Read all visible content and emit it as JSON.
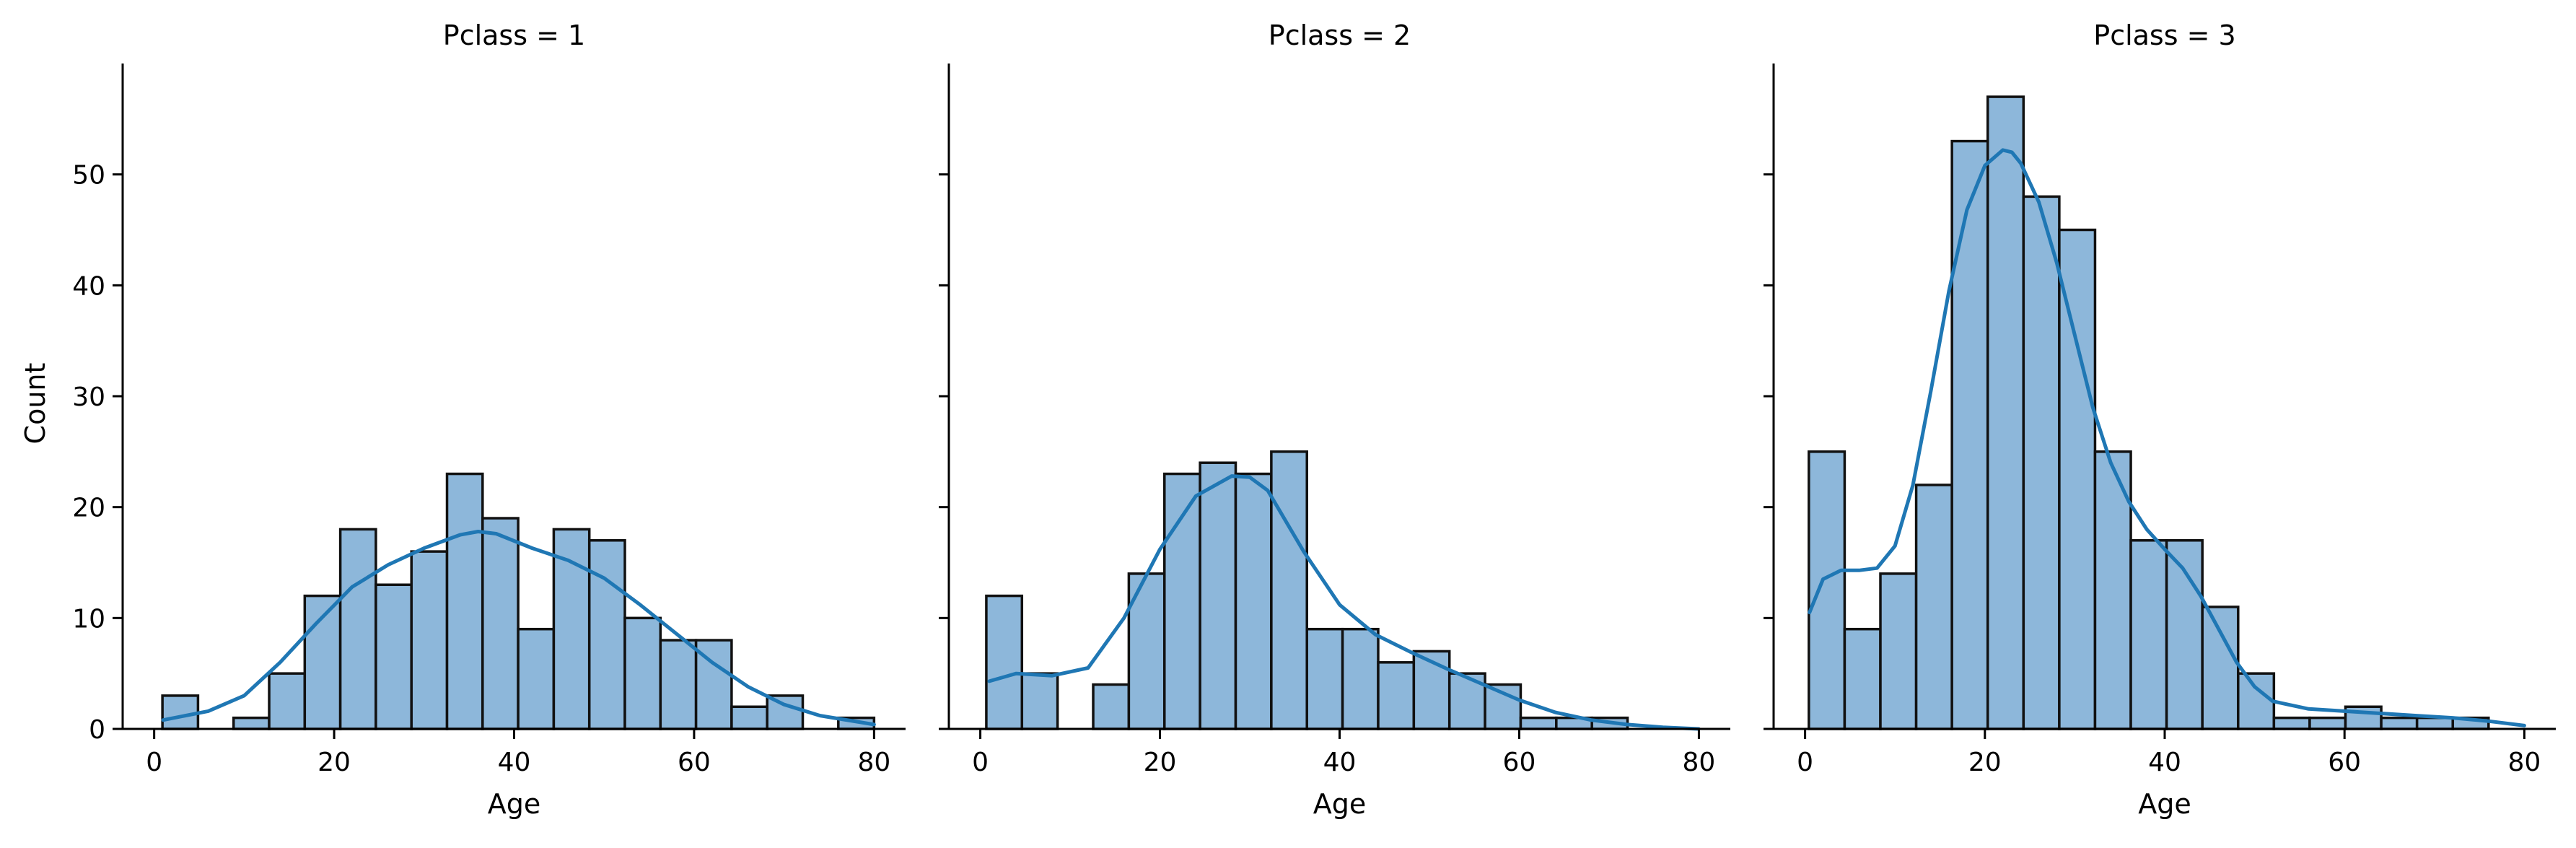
{
  "chart_data": {
    "type": "bar",
    "layout": "facet-grid-1x3",
    "shared_y": true,
    "ylabel": "Count",
    "ylim": [
      0,
      60
    ],
    "yticks": [
      0,
      10,
      20,
      30,
      40,
      50
    ],
    "grid": false,
    "colors": {
      "bar_fill": "#8db7da",
      "bar_edge": "#111111",
      "kde_line": "#1f77b4",
      "axis": "#000000"
    },
    "panels": [
      {
        "title": "Pclass = 1",
        "xlabel": "Age",
        "xlim": [
          -3.5,
          83.5
        ],
        "xticks": [
          0,
          20,
          40,
          60,
          80
        ],
        "bin_edges": [
          0.92,
          4.873,
          8.826,
          12.779,
          16.732,
          20.685,
          24.638,
          28.591,
          32.544,
          36.497,
          40.45,
          44.403,
          48.356,
          52.309,
          56.262,
          60.215,
          64.168,
          68.121,
          72.074,
          76.027,
          80.0
        ],
        "counts": [
          3,
          0,
          1,
          5,
          12,
          18,
          13,
          16,
          23,
          19,
          9,
          18,
          17,
          10,
          8,
          8,
          2,
          3,
          0,
          1
        ],
        "kde": {
          "x": [
            1,
            6,
            10,
            14,
            18,
            22,
            26,
            30,
            34,
            36,
            38,
            42,
            46,
            50,
            54,
            58,
            62,
            66,
            70,
            74,
            80
          ],
          "y": [
            0.8,
            1.6,
            3.0,
            6.0,
            9.5,
            12.8,
            14.8,
            16.3,
            17.5,
            17.8,
            17.6,
            16.3,
            15.2,
            13.6,
            11.2,
            8.6,
            6.0,
            3.8,
            2.2,
            1.2,
            0.4
          ]
        }
      },
      {
        "title": "Pclass = 2",
        "xlabel": "Age",
        "xlim": [
          -3.5,
          83.5
        ],
        "xticks": [
          0,
          20,
          40,
          60,
          80
        ],
        "bin_edges": [
          0.67,
          4.636,
          8.602,
          12.568,
          16.534,
          20.5,
          24.466,
          28.432,
          32.398,
          36.364,
          40.33,
          44.296,
          48.262,
          52.228,
          56.194,
          60.16,
          64.126,
          68.092,
          72.058,
          76.024,
          80.0
        ],
        "counts": [
          12,
          5,
          0,
          4,
          14,
          23,
          24,
          23,
          25,
          9,
          9,
          6,
          7,
          5,
          4,
          1,
          1,
          1,
          0,
          0
        ],
        "kde": {
          "x": [
            1,
            4,
            8,
            12,
            16,
            20,
            24,
            28,
            30,
            32,
            36,
            40,
            44,
            48,
            52,
            56,
            60,
            64,
            68,
            72,
            76,
            80
          ],
          "y": [
            4.3,
            5.0,
            4.8,
            5.5,
            10.0,
            16.2,
            21.0,
            22.8,
            22.7,
            21.5,
            16.0,
            11.2,
            8.5,
            6.9,
            5.4,
            4.0,
            2.6,
            1.5,
            0.8,
            0.4,
            0.15,
            0.0
          ]
        }
      },
      {
        "title": "Pclass = 3",
        "xlabel": "Age",
        "xlim": [
          -3.5,
          83.5
        ],
        "xticks": [
          0,
          20,
          40,
          60,
          80
        ],
        "bin_edges": [
          0.42,
          4.399,
          8.378,
          12.357,
          16.336,
          20.315,
          24.294,
          28.273,
          32.252,
          36.231,
          40.21,
          44.189,
          48.168,
          52.147,
          56.126,
          60.105,
          64.084,
          68.063,
          72.042,
          76.021,
          80.0
        ],
        "counts": [
          25,
          9,
          14,
          22,
          53,
          57,
          48,
          45,
          25,
          17,
          17,
          11,
          5,
          1,
          1,
          2,
          1,
          1,
          1,
          0
        ],
        "kde": {
          "x": [
            0.5,
            2,
            4,
            6,
            8,
            10,
            12,
            14,
            16,
            18,
            20,
            22,
            23,
            24,
            26,
            28,
            30,
            32,
            34,
            36,
            38,
            40,
            42,
            44,
            46,
            48,
            50,
            52,
            56,
            60,
            64,
            68,
            72,
            76,
            80
          ],
          "y": [
            10.5,
            13.5,
            14.3,
            14.3,
            14.5,
            16.5,
            22.0,
            30.5,
            39.5,
            46.8,
            50.8,
            52.2,
            52.0,
            51.0,
            47.5,
            42.0,
            35.5,
            29.0,
            24.0,
            20.5,
            18.0,
            16.2,
            14.5,
            12.0,
            9.0,
            6.0,
            3.8,
            2.5,
            1.8,
            1.6,
            1.4,
            1.2,
            1.0,
            0.7,
            0.3
          ]
        }
      }
    ]
  }
}
